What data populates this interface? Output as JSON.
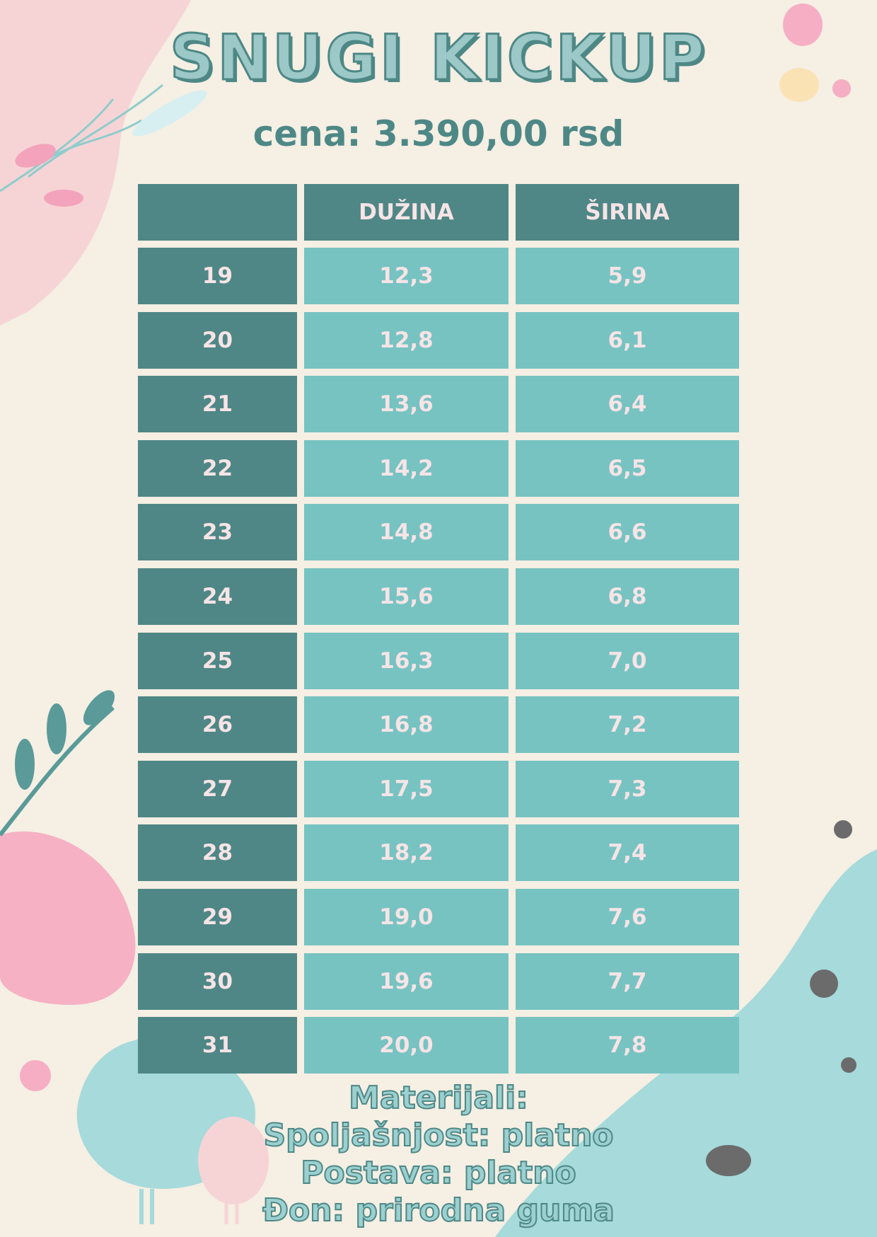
{
  "header": {
    "title": "SNUGI KICKUP",
    "price": "cena: 3.390,00 rsd"
  },
  "table": {
    "columns": [
      "DUŽINA",
      "ŠIRINA"
    ],
    "rows": [
      [
        "19",
        "12,3",
        "5,9"
      ],
      [
        "20",
        "12,8",
        "6,1"
      ],
      [
        "21",
        "13,6",
        "6,4"
      ],
      [
        "22",
        "14,2",
        "6,5"
      ],
      [
        "23",
        "14,8",
        "6,6"
      ],
      [
        "24",
        "15,6",
        "6,8"
      ],
      [
        "25",
        "16,3",
        "7,0"
      ],
      [
        "26",
        "16,8",
        "7,2"
      ],
      [
        "27",
        "17,5",
        "7,3"
      ],
      [
        "28",
        "18,2",
        "7,4"
      ],
      [
        "29",
        "19,0",
        "7,6"
      ],
      [
        "30",
        "19,6",
        "7,7"
      ],
      [
        "31",
        "20,0",
        "7,8"
      ]
    ]
  },
  "footer": {
    "lines": [
      "Materijali:",
      "Spoljašnjost: platno",
      "Postava: platno",
      "Đon: prirodna guma"
    ]
  }
}
